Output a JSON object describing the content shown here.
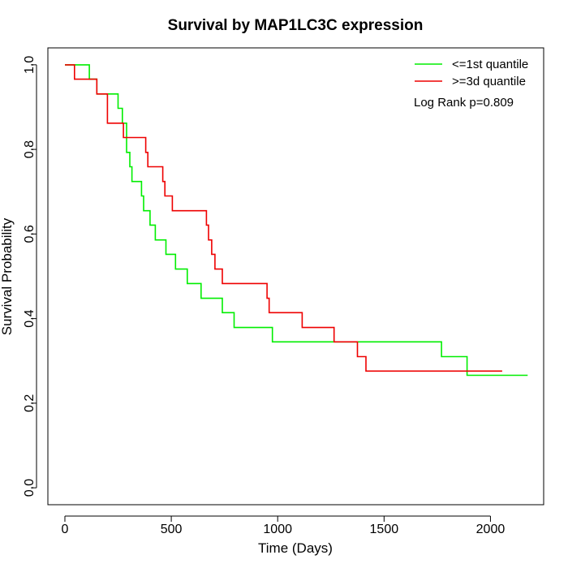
{
  "chart_data": {
    "type": "line",
    "step": true,
    "title": "Survival by MAP1LC3C expression",
    "xlabel": "Time (Days)",
    "ylabel": "Survival Probability",
    "xlim": [
      -80,
      2250
    ],
    "ylim": [
      -0.04,
      1.04
    ],
    "xticks": [
      0,
      500,
      1000,
      1500,
      2000
    ],
    "yticks": [
      0.0,
      0.2,
      0.4,
      0.6,
      0.8,
      1.0
    ],
    "xtick_labels": [
      "0",
      "500",
      "1000",
      "1500",
      "2000"
    ],
    "ytick_labels": [
      "0.0",
      "0.2",
      "0.4",
      "0.6",
      "0.8",
      "1.0"
    ],
    "grid": false,
    "legend_position": "top-right",
    "annotation": "Log Rank p=0.809",
    "series": [
      {
        "name": "<=1st quantile",
        "color": "#00ee00",
        "x": [
          0,
          115,
          150,
          250,
          270,
          290,
          305,
          315,
          320,
          360,
          370,
          400,
          425,
          450,
          475,
          520,
          575,
          640,
          740,
          795,
          975,
          1770,
          1890,
          2175
        ],
        "y": [
          1.0,
          0.966,
          0.931,
          0.897,
          0.862,
          0.793,
          0.759,
          0.724,
          0.724,
          0.69,
          0.655,
          0.621,
          0.586,
          0.586,
          0.552,
          0.517,
          0.483,
          0.448,
          0.414,
          0.379,
          0.345,
          0.31,
          0.266,
          0.266
        ]
      },
      {
        "name": ">=3d quantile",
        "color": "#ee0000",
        "x": [
          0,
          45,
          150,
          200,
          275,
          380,
          390,
          460,
          470,
          505,
          665,
          675,
          690,
          705,
          730,
          740,
          950,
          960,
          1115,
          1265,
          1375,
          1415,
          2055
        ],
        "y": [
          1.0,
          0.966,
          0.931,
          0.862,
          0.828,
          0.793,
          0.759,
          0.724,
          0.69,
          0.655,
          0.621,
          0.586,
          0.552,
          0.517,
          0.517,
          0.483,
          0.448,
          0.414,
          0.379,
          0.345,
          0.31,
          0.276,
          0.276
        ]
      }
    ]
  }
}
